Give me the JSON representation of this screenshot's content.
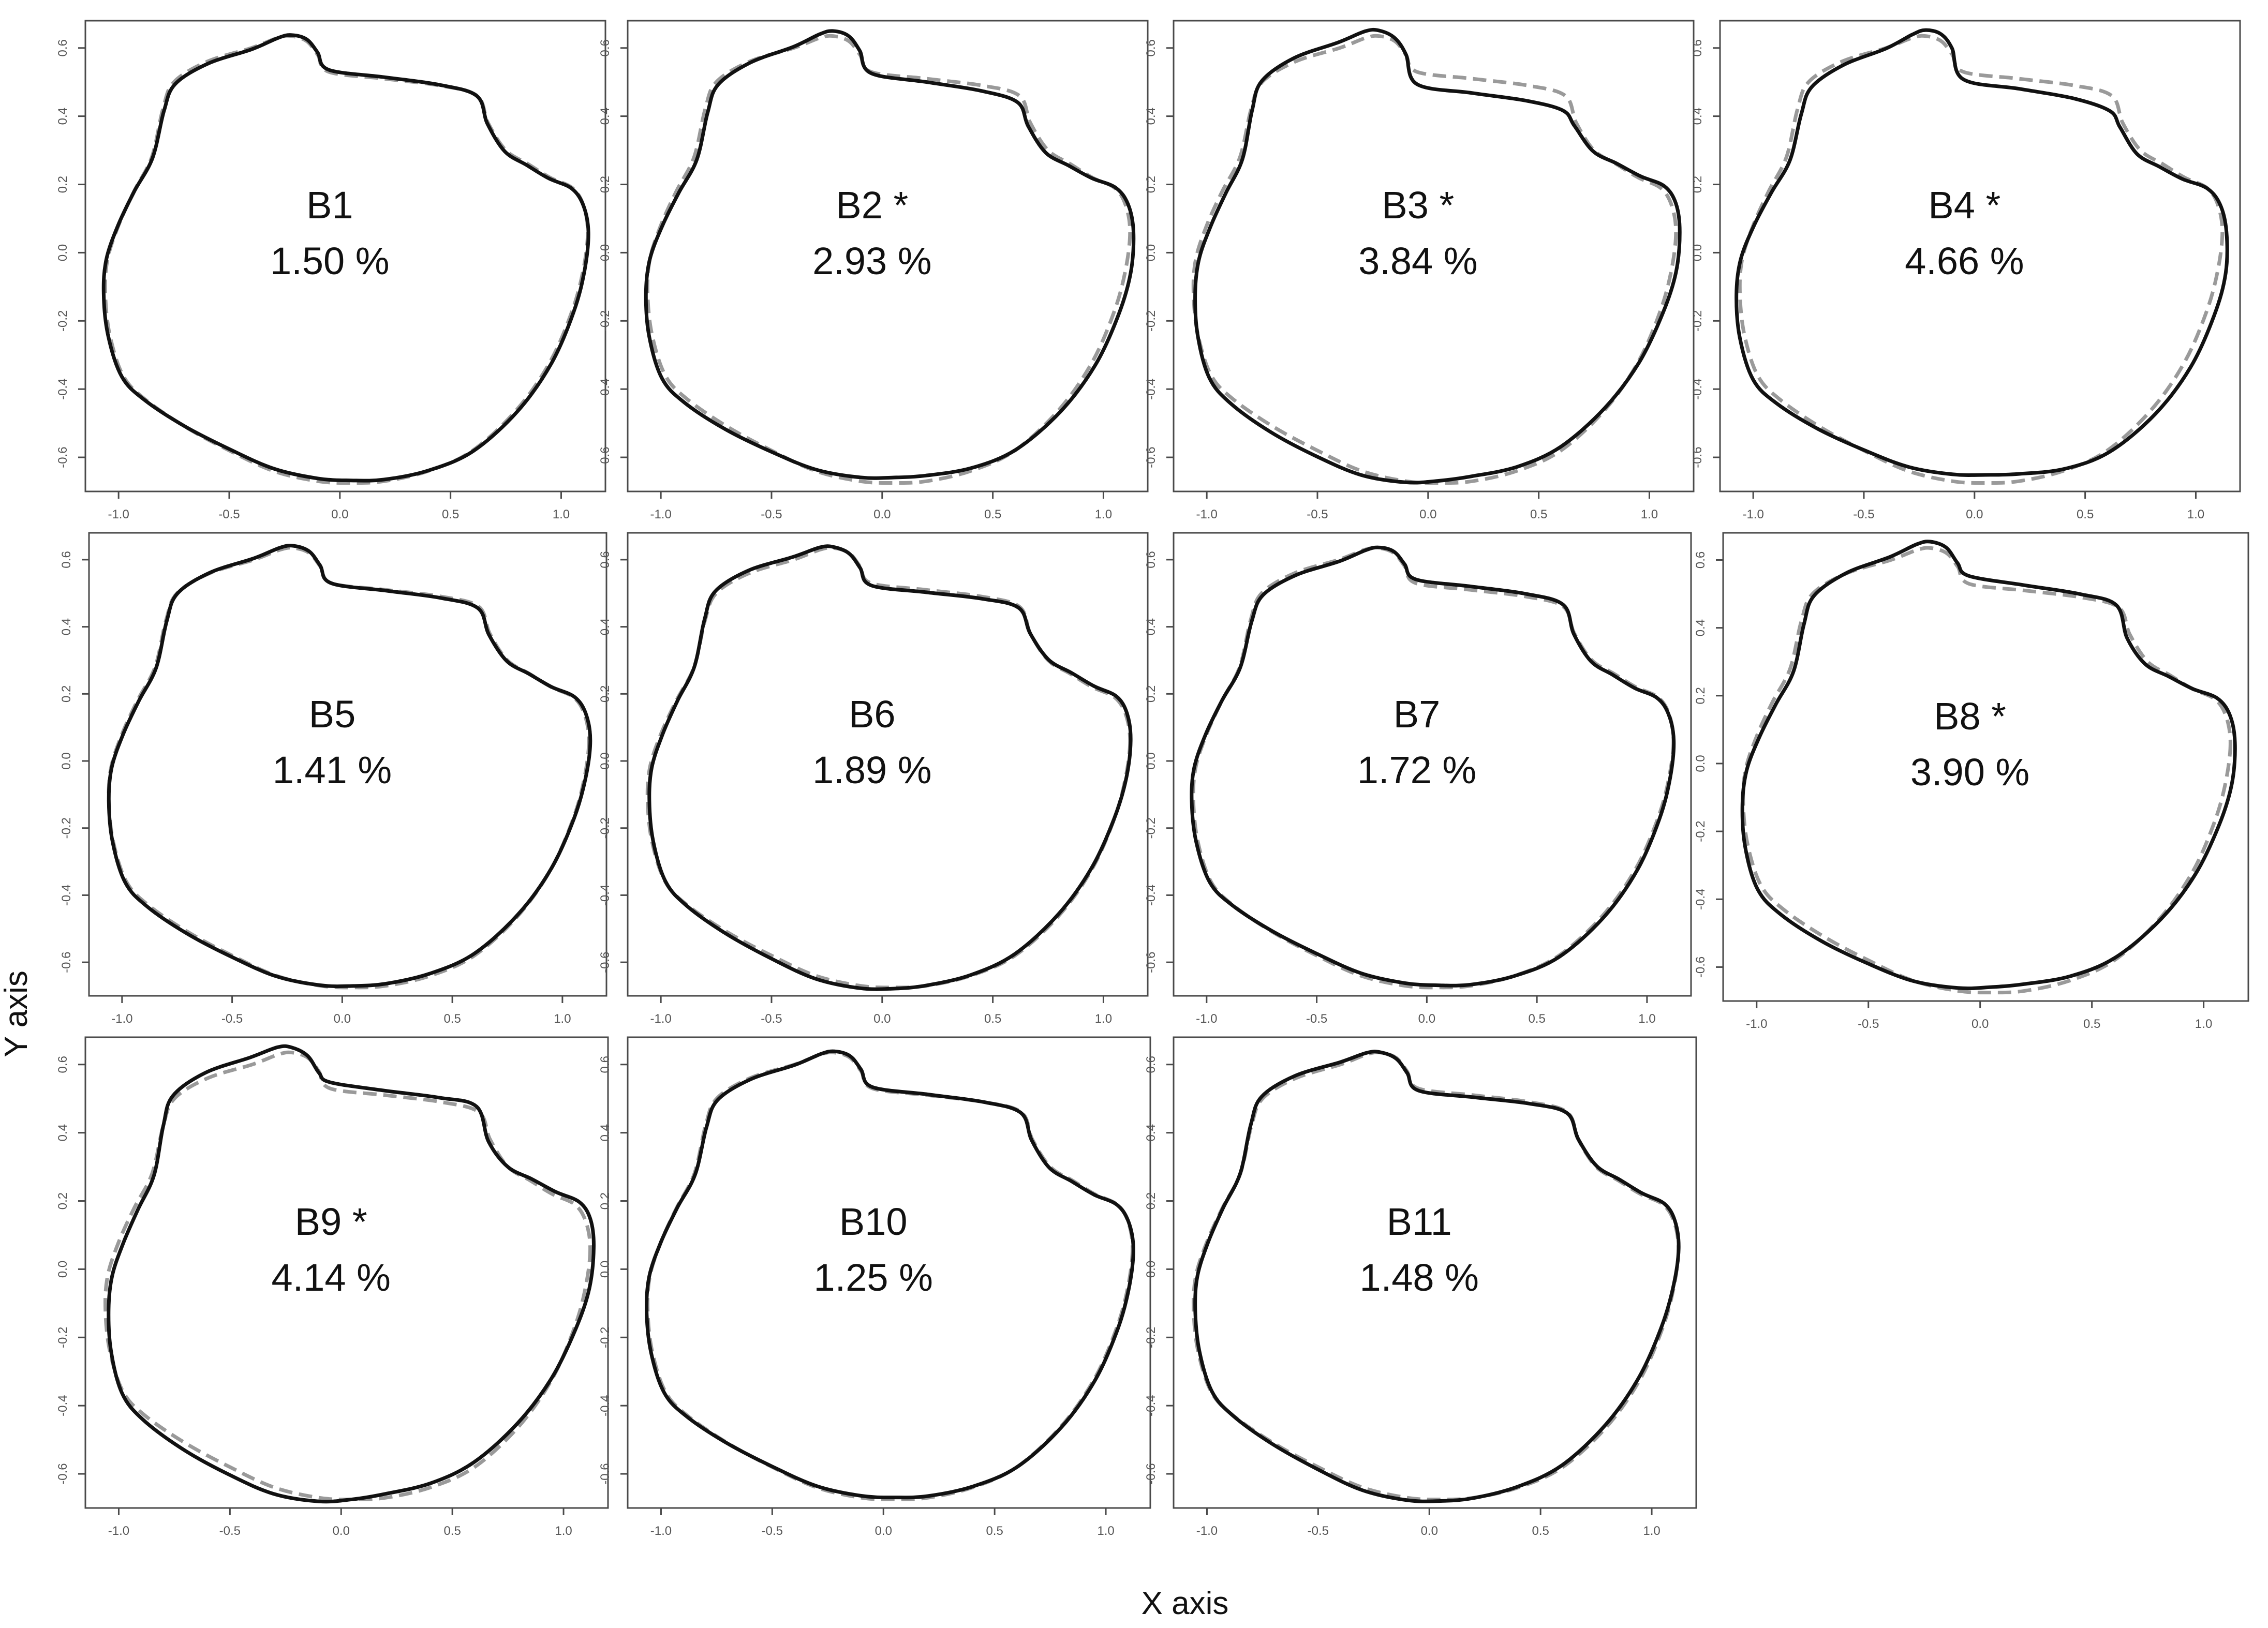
{
  "chart_data": {
    "type": "line",
    "xlabel": "X axis",
    "ylabel": "Y axis",
    "xlim": [
      -1.15,
      1.2
    ],
    "ylim": [
      -0.7,
      0.68
    ],
    "x_ticks": [
      -1.0,
      -0.5,
      0.0,
      0.5,
      1.0
    ],
    "x_tick_labels": [
      "-1.0",
      "-0.5",
      "0.0",
      "0.5",
      "1.0"
    ],
    "y_ticks": [
      -0.6,
      -0.4,
      -0.2,
      0.0,
      0.2,
      0.4,
      0.6
    ],
    "y_tick_labels": [
      "-0.6",
      "-0.4",
      "-0.2",
      "0.0",
      "0.2",
      "0.4",
      "0.6"
    ],
    "grid": false,
    "legend": "none",
    "colors": {
      "solid_outline": "#111111",
      "dashed_outline": "#9a9a9a"
    },
    "base_outline": {
      "x": [
        1.12,
        1.1,
        1.05,
        0.95,
        0.8,
        0.6,
        0.4,
        0.2,
        0.05,
        -0.1,
        -0.3,
        -0.5,
        -0.7,
        -0.88,
        -0.98,
        -1.04,
        -1.06,
        -1.05,
        -1.0,
        -0.93,
        -0.85,
        -0.8,
        -0.75,
        -0.6,
        -0.4,
        -0.28,
        -0.22,
        -0.15,
        -0.1,
        -0.05,
        0.2,
        0.45,
        0.62,
        0.67,
        0.75,
        0.85,
        0.95,
        1.05,
        1.1
      ],
      "y": [
        0.06,
        -0.05,
        -0.17,
        -0.32,
        -0.46,
        -0.58,
        -0.64,
        -0.67,
        -0.675,
        -0.67,
        -0.64,
        -0.58,
        -0.51,
        -0.43,
        -0.36,
        -0.24,
        -0.12,
        -0.02,
        0.08,
        0.18,
        0.28,
        0.42,
        0.5,
        0.56,
        0.6,
        0.63,
        0.635,
        0.62,
        0.58,
        0.53,
        0.51,
        0.49,
        0.46,
        0.38,
        0.3,
        0.26,
        0.22,
        0.19,
        0.14
      ]
    },
    "series": [
      {
        "panel": "B1",
        "label": "B1",
        "value": "1.50 %",
        "deviation": 0.012,
        "hump": 0.0,
        "stretch": 0.0,
        "phase": 0.4
      },
      {
        "panel": "B2",
        "label": "B2 *",
        "value": "2.93 %",
        "deviation": 0.025,
        "hump": 0.01,
        "stretch": 0.015,
        "phase": 1.2
      },
      {
        "panel": "B3",
        "label": "B3 *",
        "value": "3.84 %",
        "deviation": 0.03,
        "hump": 0.03,
        "stretch": 0.02,
        "phase": 2.1
      },
      {
        "panel": "B4",
        "label": "B4 *",
        "value": "4.66 %",
        "deviation": 0.035,
        "hump": 0.035,
        "stretch": 0.025,
        "phase": 0.9
      },
      {
        "panel": "B5",
        "label": "B5",
        "value": "1.41 %",
        "deviation": 0.01,
        "hump": 0.0,
        "stretch": 0.0,
        "phase": 1.7
      },
      {
        "panel": "B6",
        "label": "B6",
        "value": "1.89 %",
        "deviation": 0.014,
        "hump": 0.0,
        "stretch": 0.008,
        "phase": 2.8
      },
      {
        "panel": "B7",
        "label": "B7",
        "value": "1.72 %",
        "deviation": 0.012,
        "hump": -0.005,
        "stretch": 0.0,
        "phase": 0.2
      },
      {
        "panel": "B8",
        "label": "B8 *",
        "value": "3.90 %",
        "deviation": 0.03,
        "hump": -0.02,
        "stretch": 0.018,
        "phase": 1.5
      },
      {
        "panel": "B9",
        "label": "B9 *",
        "value": "4.14 %",
        "deviation": 0.035,
        "hump": -0.03,
        "stretch": 0.02,
        "phase": 2.4
      },
      {
        "panel": "B10",
        "label": "B10",
        "value": "1.25 %",
        "deviation": 0.009,
        "hump": 0.0,
        "stretch": 0.0,
        "phase": 0.7
      },
      {
        "panel": "B11",
        "label": "B11",
        "value": "1.48 %",
        "deviation": 0.012,
        "hump": 0.0,
        "stretch": 0.0,
        "phase": 3.0
      }
    ]
  }
}
